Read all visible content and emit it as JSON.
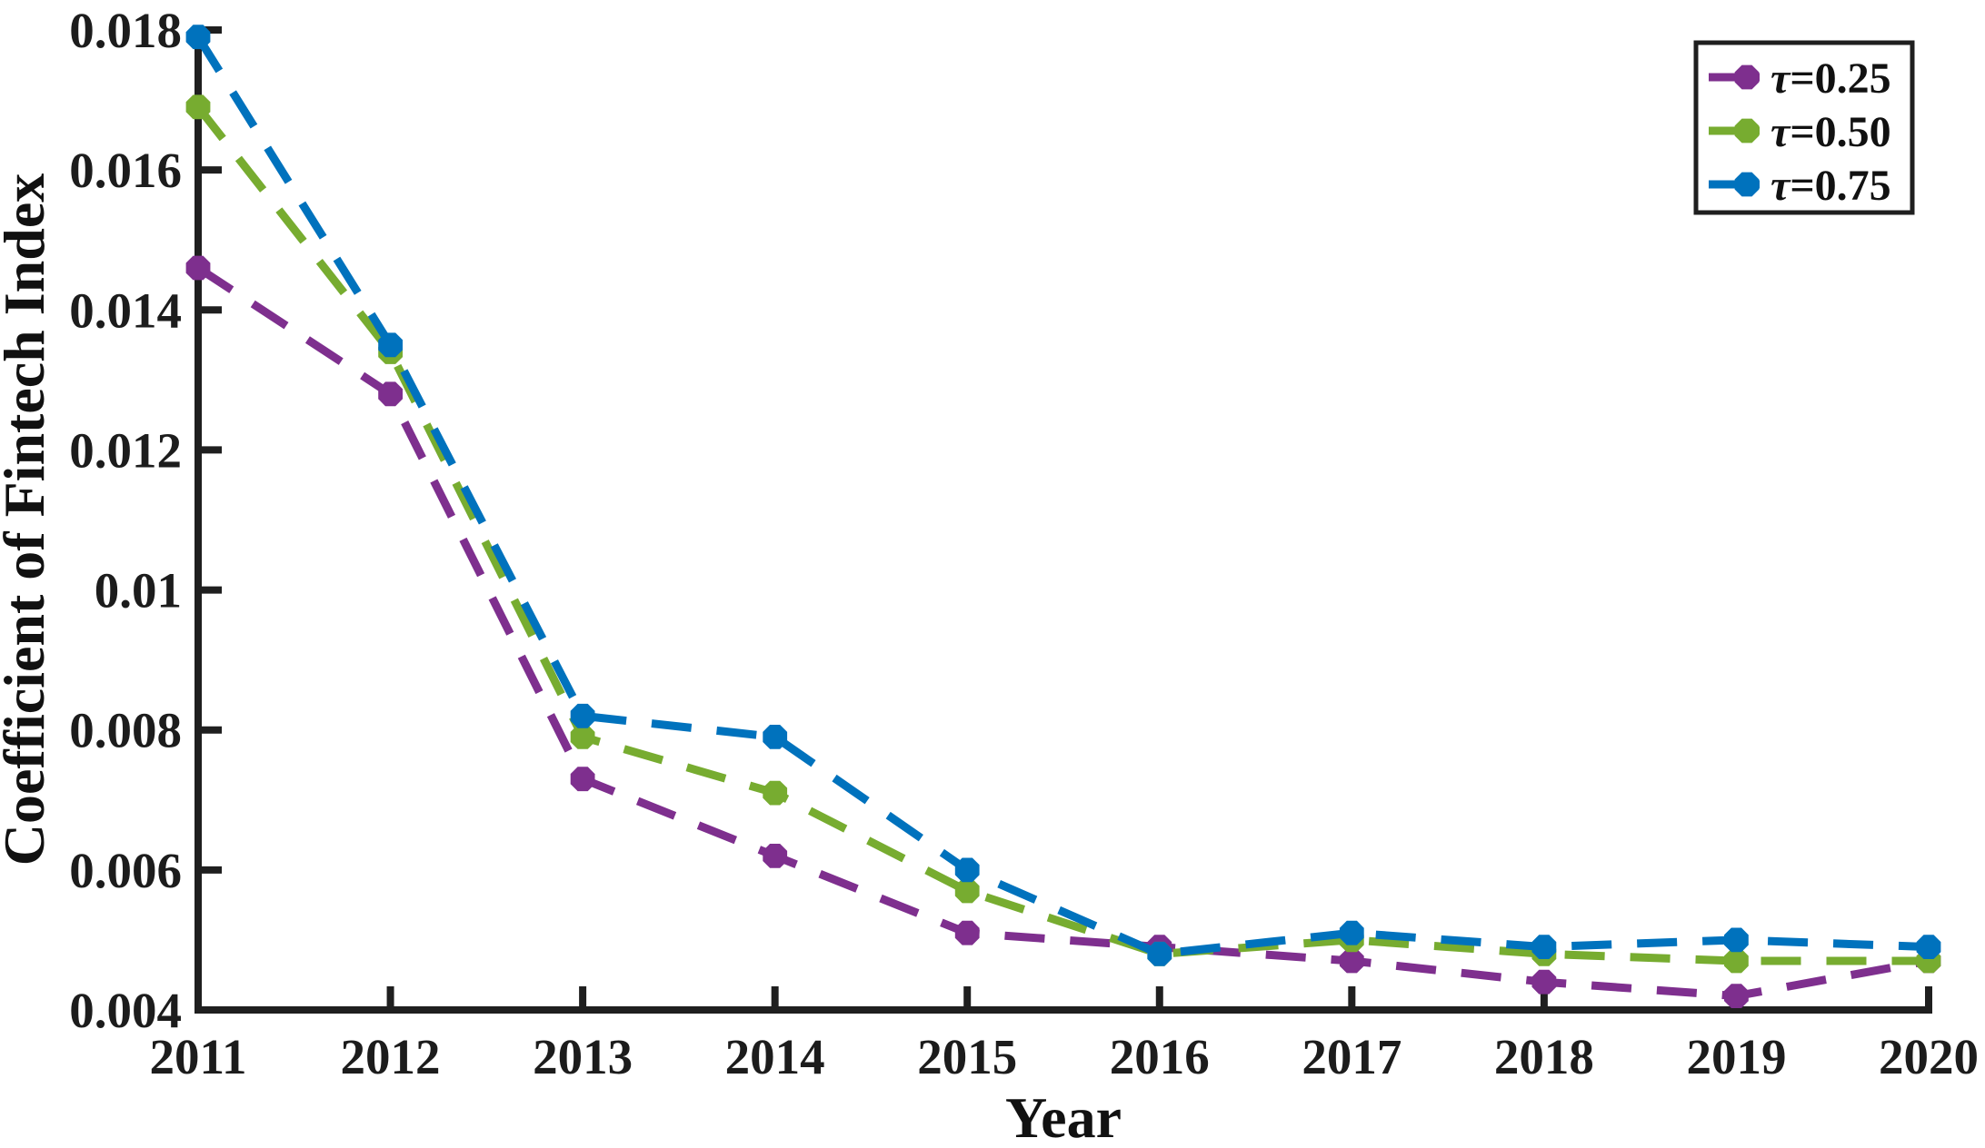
{
  "figure": {
    "background": "#ffffff",
    "axis_color": "#1f1f1f",
    "text_color": "#111111"
  },
  "chart_data": {
    "type": "line",
    "title": "",
    "xlabel": "Year",
    "ylabel": "Coefficient of Fintech Index",
    "x": [
      2011,
      2012,
      2013,
      2014,
      2015,
      2016,
      2017,
      2018,
      2019,
      2020
    ],
    "x_tick_labels": [
      "2011",
      "2012",
      "2013",
      "2014",
      "2015",
      "2016",
      "2017",
      "2018",
      "2019",
      "2020"
    ],
    "y_tick_values": [
      0.004,
      0.006,
      0.008,
      0.01,
      0.012,
      0.014,
      0.016,
      0.018
    ],
    "y_tick_labels": [
      "0.004",
      "0.006",
      "0.008",
      "0.01",
      "0.012",
      "0.014",
      "0.016",
      "0.018"
    ],
    "xlim": [
      2011,
      2020
    ],
    "ylim": [
      0.004,
      0.018
    ],
    "grid": false,
    "line_style": "dashed",
    "marker": "circle",
    "legend_position": "top-right",
    "series": [
      {
        "name": "τ=0.25",
        "color": "#7E2F8E",
        "values": [
          0.0146,
          0.0128,
          0.0073,
          0.0062,
          0.0051,
          0.0049,
          0.0047,
          0.0044,
          0.0042,
          0.0047
        ]
      },
      {
        "name": "τ=0.50",
        "color": "#77AC30",
        "values": [
          0.0169,
          0.0134,
          0.0079,
          0.0071,
          0.0057,
          0.0048,
          0.005,
          0.0048,
          0.0047,
          0.0047
        ]
      },
      {
        "name": "τ=0.75",
        "color": "#0072BD",
        "values": [
          0.0179,
          0.0135,
          0.0082,
          0.0079,
          0.006,
          0.0048,
          0.0051,
          0.0049,
          0.005,
          0.0049
        ]
      }
    ]
  }
}
